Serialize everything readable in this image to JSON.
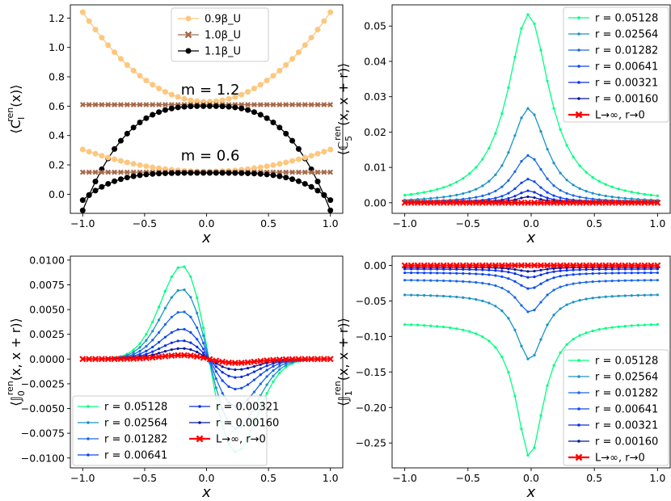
{
  "chart_data": [
    {
      "type": "line",
      "xlabel": "x",
      "ylabel": "⟨C_I^ren(x)⟩",
      "xlim": [
        -1.1,
        1.1
      ],
      "ylim": [
        -0.13,
        1.29
      ],
      "xticks": [
        -1.0,
        -0.5,
        0.0,
        0.5,
        1.0
      ],
      "xtick_labels": [
        "−1.0",
        "−0.5",
        "0.0",
        "0.5",
        "1.0"
      ],
      "yticks": [
        0.0,
        0.2,
        0.4,
        0.6,
        0.8,
        1.0,
        1.2
      ],
      "ytick_labels": [
        "0.0",
        "0.2",
        "0.4",
        "0.6",
        "0.8",
        "1.0",
        "1.2"
      ],
      "legend_position": "top-center",
      "annotations": [
        "m = 1.2",
        "m = 0.6"
      ],
      "series": [
        {
          "name": "0.9β_U",
          "group": "m = 1.2",
          "color": "#fdc77e",
          "marker": "circle",
          "curve": "power",
          "y0": 0.63,
          "y1": 1.24,
          "p": 2
        },
        {
          "name": "1.0β_U",
          "group": "m = 1.2",
          "color": "#a5694a",
          "marker": "x",
          "curve": "flat",
          "y0": 0.61,
          "y1": 0.61
        },
        {
          "name": "1.1β_U",
          "group": "m = 1.2",
          "color": "#000000",
          "marker": "circle",
          "curve": "power",
          "y0": 0.6,
          "y1": -0.11,
          "p": 3
        },
        {
          "name": "0.9β_U",
          "group": "m = 0.6",
          "color": "#fdc77e",
          "marker": "circle",
          "curve": "power",
          "y0": 0.155,
          "y1": 0.305,
          "p": 2
        },
        {
          "name": "1.0β_U",
          "group": "m = 0.6",
          "color": "#a5694a",
          "marker": "x",
          "curve": "flat",
          "y0": 0.15,
          "y1": 0.15
        },
        {
          "name": "1.1β_U",
          "group": "m = 0.6",
          "color": "#000000",
          "marker": "circle",
          "curve": "power",
          "y0": 0.145,
          "y1": -0.04,
          "p": 4
        }
      ]
    },
    {
      "type": "line",
      "xlabel": "x",
      "ylabel": "⟨ℂ_5^ren(x, x + r)⟩",
      "xlim": [
        -1.1,
        1.1
      ],
      "ylim": [
        -0.003,
        0.056
      ],
      "xticks": [
        -1.0,
        -0.5,
        0.0,
        0.5,
        1.0
      ],
      "xtick_labels": [
        "−1.0",
        "−0.5",
        "0.0",
        "0.5",
        "1.0"
      ],
      "yticks": [
        0.0,
        0.01,
        0.02,
        0.03,
        0.04,
        0.05
      ],
      "ytick_labels": [
        "0.00",
        "0.01",
        "0.02",
        "0.03",
        "0.04",
        "0.05"
      ],
      "legend_position": "top-right",
      "series": [
        {
          "name": "r = 0.05128",
          "color": "#00ff80",
          "curve": "bump",
          "amp": 0.0533,
          "base": 0.0,
          "width": 0.2,
          "center": -0.02
        },
        {
          "name": "r = 0.02564",
          "color": "#1c93c6",
          "curve": "bump",
          "amp": 0.0267,
          "base": 0.0,
          "width": 0.17,
          "center": -0.02
        },
        {
          "name": "r = 0.01282",
          "color": "#1a68e3",
          "curve": "bump",
          "amp": 0.0134,
          "base": 0.0,
          "width": 0.15,
          "center": -0.02
        },
        {
          "name": "r = 0.00641",
          "color": "#0f47f0",
          "curve": "bump",
          "amp": 0.0067,
          "base": 0.0,
          "width": 0.13,
          "center": -0.02
        },
        {
          "name": "r = 0.00321",
          "color": "#0a2ee0",
          "curve": "bump",
          "amp": 0.0034,
          "base": 0.0,
          "width": 0.12,
          "center": -0.02
        },
        {
          "name": "r = 0.00160",
          "color": "#06189c",
          "curve": "bump",
          "amp": 0.0017,
          "base": 0.0,
          "width": 0.11,
          "center": -0.02
        },
        {
          "name": "L→∞, r→0",
          "color": "#ff0000",
          "curve": "flat",
          "y0": 0.0,
          "y1": 0.0,
          "marker": "x"
        }
      ]
    },
    {
      "type": "line",
      "xlabel": "x",
      "ylabel": "⟨𝕁_0^ren(x, x + r)⟩",
      "xlim": [
        -1.1,
        1.1
      ],
      "ylim": [
        -0.011,
        0.0104
      ],
      "xticks": [
        -1.0,
        -0.5,
        0.0,
        0.5,
        1.0
      ],
      "xtick_labels": [
        "−1.0",
        "−0.5",
        "0.0",
        "0.5",
        "1.0"
      ],
      "yticks": [
        -0.01,
        -0.0075,
        -0.005,
        -0.0025,
        0.0,
        0.0025,
        0.005,
        0.0075,
        0.01
      ],
      "ytick_labels": [
        "−0.0100",
        "−0.0075",
        "−0.0050",
        "−0.0025",
        "0.0000",
        "0.0025",
        "0.0050",
        "0.0075",
        "0.0100"
      ],
      "legend_position": "bottom-left (2 columns)",
      "series": [
        {
          "name": "r = 0.05128",
          "color": "#00ff80",
          "curve": "odd",
          "amp": 0.0096,
          "shift": 0.02
        },
        {
          "name": "r = 0.02564",
          "color": "#1c93c6",
          "curve": "odd",
          "amp": 0.0072,
          "shift": 0.02
        },
        {
          "name": "r = 0.01282",
          "color": "#1a68e3",
          "curve": "odd",
          "amp": 0.0049,
          "shift": 0.02
        },
        {
          "name": "r = 0.00641",
          "color": "#0f47f0",
          "curve": "odd",
          "amp": 0.0031,
          "shift": 0.02
        },
        {
          "name": "r = 0.00321",
          "color": "#0a2ee0",
          "curve": "odd",
          "amp": 0.0019,
          "shift": 0.02
        },
        {
          "name": "r = 0.00160",
          "color": "#06189c",
          "curve": "odd",
          "amp": 0.0011,
          "shift": 0.02
        },
        {
          "name": "L→∞, r→0",
          "color": "#ff0000",
          "curve": "odd",
          "amp": 0.0004,
          "shift": 0.02,
          "marker": "x"
        }
      ]
    },
    {
      "type": "line",
      "xlabel": "x",
      "ylabel": "⟨𝕁_1^ren(x, x + r)⟩",
      "xlim": [
        -1.1,
        1.1
      ],
      "ylim": [
        -0.285,
        0.013
      ],
      "xticks": [
        -1.0,
        -0.5,
        0.0,
        0.5,
        1.0
      ],
      "xtick_labels": [
        "−1.0",
        "−0.5",
        "0.0",
        "0.5",
        "1.0"
      ],
      "yticks": [
        -0.25,
        -0.2,
        -0.15,
        -0.1,
        -0.05,
        0.0
      ],
      "ytick_labels": [
        "−0.25",
        "−0.20",
        "−0.15",
        "−0.10",
        "−0.05",
        "0.00"
      ],
      "legend_position": "bottom-right",
      "series": [
        {
          "name": "r = 0.05128",
          "color": "#00ff80",
          "curve": "bump",
          "amp": -0.19,
          "base": -0.08,
          "width": 0.13,
          "center": -0.01
        },
        {
          "name": "r = 0.02564",
          "color": "#1c93c6",
          "curve": "bump",
          "amp": -0.093,
          "base": -0.04,
          "width": 0.13,
          "center": -0.01
        },
        {
          "name": "r = 0.01282",
          "color": "#1a68e3",
          "curve": "bump",
          "amp": -0.046,
          "base": -0.02,
          "width": 0.13,
          "center": -0.01
        },
        {
          "name": "r = 0.00641",
          "color": "#0f47f0",
          "curve": "bump",
          "amp": -0.023,
          "base": -0.01,
          "width": 0.13,
          "center": -0.01
        },
        {
          "name": "r = 0.00321",
          "color": "#0a2ee0",
          "curve": "bump",
          "amp": -0.012,
          "base": -0.005,
          "width": 0.13,
          "center": -0.01
        },
        {
          "name": "r = 0.00160",
          "color": "#06189c",
          "curve": "bump",
          "amp": -0.006,
          "base": -0.0025,
          "width": 0.13,
          "center": -0.01
        },
        {
          "name": "L→∞, r→0",
          "color": "#ff0000",
          "curve": "flat",
          "y0": 0.0,
          "y1": 0.0,
          "marker": "x"
        }
      ]
    }
  ]
}
